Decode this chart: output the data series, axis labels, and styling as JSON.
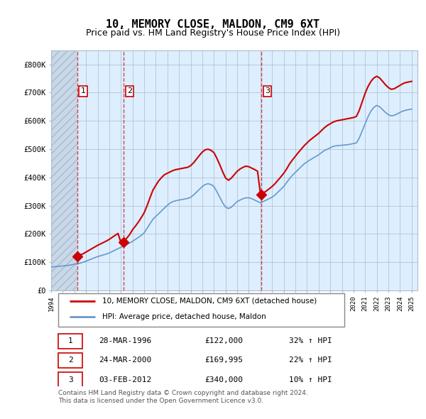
{
  "title": "10, MEMORY CLOSE, MALDON, CM9 6XT",
  "subtitle": "Price paid vs. HM Land Registry's House Price Index (HPI)",
  "ylabel": "",
  "ylim": [
    0,
    850000
  ],
  "yticks": [
    0,
    100000,
    200000,
    300000,
    400000,
    500000,
    600000,
    700000,
    800000
  ],
  "ytick_labels": [
    "£0",
    "£100K",
    "£200K",
    "£300K",
    "£400K",
    "£500K",
    "£600K",
    "£700K",
    "£800K"
  ],
  "xlim_start": 1994.0,
  "xlim_end": 2025.5,
  "background_color": "#ffffff",
  "plot_bg_color": "#ddeeff",
  "grid_color": "#aabbcc",
  "hatch_color": "#c8d8e8",
  "title_fontsize": 11,
  "subtitle_fontsize": 9,
  "sale_color": "#cc0000",
  "hpi_color": "#6699cc",
  "dashed_line_color": "#cc0000",
  "transactions": [
    {
      "date": 1996.23,
      "price": 122000,
      "label": "1"
    },
    {
      "date": 2000.23,
      "price": 169995,
      "label": "2"
    },
    {
      "date": 2012.09,
      "price": 340000,
      "label": "3"
    }
  ],
  "transaction_table": [
    {
      "num": "1",
      "date": "28-MAR-1996",
      "price": "£122,000",
      "hpi": "32% ↑ HPI"
    },
    {
      "num": "2",
      "date": "24-MAR-2000",
      "price": "£169,995",
      "hpi": "22% ↑ HPI"
    },
    {
      "num": "3",
      "date": "03-FEB-2012",
      "price": "£340,000",
      "hpi": "10% ↑ HPI"
    }
  ],
  "legend_line1": "10, MEMORY CLOSE, MALDON, CM9 6XT (detached house)",
  "legend_line2": "HPI: Average price, detached house, Maldon",
  "footer": "Contains HM Land Registry data © Crown copyright and database right 2024.\nThis data is licensed under the Open Government Licence v3.0.",
  "hpi_data_x": [
    1994.0,
    1994.25,
    1994.5,
    1994.75,
    1995.0,
    1995.25,
    1995.5,
    1995.75,
    1996.0,
    1996.25,
    1996.5,
    1996.75,
    1997.0,
    1997.25,
    1997.5,
    1997.75,
    1998.0,
    1998.25,
    1998.5,
    1998.75,
    1999.0,
    1999.25,
    1999.5,
    1999.75,
    2000.0,
    2000.25,
    2000.5,
    2000.75,
    2001.0,
    2001.25,
    2001.5,
    2001.75,
    2002.0,
    2002.25,
    2002.5,
    2002.75,
    2003.0,
    2003.25,
    2003.5,
    2003.75,
    2004.0,
    2004.25,
    2004.5,
    2004.75,
    2005.0,
    2005.25,
    2005.5,
    2005.75,
    2006.0,
    2006.25,
    2006.5,
    2006.75,
    2007.0,
    2007.25,
    2007.5,
    2007.75,
    2008.0,
    2008.25,
    2008.5,
    2008.75,
    2009.0,
    2009.25,
    2009.5,
    2009.75,
    2010.0,
    2010.25,
    2010.5,
    2010.75,
    2011.0,
    2011.25,
    2011.5,
    2011.75,
    2012.0,
    2012.25,
    2012.5,
    2012.75,
    2013.0,
    2013.25,
    2013.5,
    2013.75,
    2014.0,
    2014.25,
    2014.5,
    2014.75,
    2015.0,
    2015.25,
    2015.5,
    2015.75,
    2016.0,
    2016.25,
    2016.5,
    2016.75,
    2017.0,
    2017.25,
    2017.5,
    2017.75,
    2018.0,
    2018.25,
    2018.5,
    2018.75,
    2019.0,
    2019.25,
    2019.5,
    2019.75,
    2020.0,
    2020.25,
    2020.5,
    2020.75,
    2021.0,
    2021.25,
    2021.5,
    2021.75,
    2022.0,
    2022.25,
    2022.5,
    2022.75,
    2023.0,
    2023.25,
    2023.5,
    2023.75,
    2024.0,
    2024.25,
    2024.5,
    2024.75,
    2025.0
  ],
  "hpi_data_y": [
    83000,
    84000,
    85000,
    86000,
    87000,
    88000,
    89000,
    91000,
    93000,
    95000,
    97000,
    100000,
    104000,
    108000,
    112000,
    116000,
    120000,
    123000,
    126000,
    129000,
    133000,
    138000,
    143000,
    148000,
    153000,
    158000,
    163000,
    168000,
    174000,
    181000,
    188000,
    195000,
    204000,
    220000,
    236000,
    252000,
    262000,
    272000,
    282000,
    292000,
    302000,
    310000,
    315000,
    318000,
    320000,
    322000,
    324000,
    326000,
    330000,
    338000,
    348000,
    358000,
    368000,
    375000,
    378000,
    375000,
    368000,
    350000,
    330000,
    310000,
    295000,
    290000,
    295000,
    305000,
    315000,
    320000,
    325000,
    328000,
    328000,
    325000,
    320000,
    315000,
    310000,
    315000,
    320000,
    325000,
    330000,
    338000,
    348000,
    358000,
    368000,
    382000,
    396000,
    408000,
    418000,
    428000,
    438000,
    448000,
    455000,
    462000,
    468000,
    474000,
    480000,
    488000,
    495000,
    500000,
    505000,
    510000,
    512000,
    513000,
    514000,
    515000,
    516000,
    518000,
    520000,
    522000,
    540000,
    565000,
    590000,
    615000,
    635000,
    648000,
    655000,
    650000,
    640000,
    630000,
    622000,
    618000,
    620000,
    625000,
    630000,
    635000,
    638000,
    640000,
    642000
  ],
  "sale_line_x": [
    1994.0,
    1994.25,
    1994.5,
    1994.75,
    1995.0,
    1995.25,
    1995.5,
    1995.75,
    1996.0,
    1996.25,
    1996.5,
    1996.75,
    1997.0,
    1997.25,
    1997.5,
    1997.75,
    1998.0,
    1998.25,
    1998.5,
    1998.75,
    1999.0,
    1999.25,
    1999.5,
    1999.75,
    2000.0,
    2000.25,
    2000.5,
    2000.75,
    2001.0,
    2001.25,
    2001.5,
    2001.75,
    2002.0,
    2002.25,
    2002.5,
    2002.75,
    2003.0,
    2003.25,
    2003.5,
    2003.75,
    2004.0,
    2004.25,
    2004.5,
    2004.75,
    2005.0,
    2005.25,
    2005.5,
    2005.75,
    2006.0,
    2006.25,
    2006.5,
    2006.75,
    2007.0,
    2007.25,
    2007.5,
    2007.75,
    2008.0,
    2008.25,
    2008.5,
    2008.75,
    2009.0,
    2009.25,
    2009.5,
    2009.75,
    2010.0,
    2010.25,
    2010.5,
    2010.75,
    2011.0,
    2011.25,
    2011.5,
    2011.75,
    2012.0,
    2012.25,
    2012.5,
    2012.75,
    2013.0,
    2013.25,
    2013.5,
    2013.75,
    2014.0,
    2014.25,
    2014.5,
    2014.75,
    2015.0,
    2015.25,
    2015.5,
    2015.75,
    2016.0,
    2016.25,
    2016.5,
    2016.75,
    2017.0,
    2017.25,
    2017.5,
    2017.75,
    2018.0,
    2018.25,
    2018.5,
    2018.75,
    2019.0,
    2019.25,
    2019.5,
    2019.75,
    2020.0,
    2020.25,
    2020.5,
    2020.75,
    2021.0,
    2021.25,
    2021.5,
    2021.75,
    2022.0,
    2022.25,
    2022.5,
    2022.75,
    2023.0,
    2023.25,
    2023.5,
    2023.75,
    2024.0,
    2024.25,
    2024.5,
    2024.75,
    2025.0
  ],
  "sale_line_y": [
    null,
    null,
    null,
    null,
    null,
    null,
    null,
    null,
    null,
    122000,
    126000,
    130000,
    136000,
    142000,
    148000,
    154000,
    160000,
    165000,
    170000,
    175000,
    181000,
    188000,
    195000,
    202000,
    170000,
    175000,
    185000,
    198000,
    215000,
    228000,
    242000,
    258000,
    275000,
    300000,
    328000,
    355000,
    372000,
    388000,
    400000,
    410000,
    415000,
    420000,
    425000,
    428000,
    430000,
    432000,
    434000,
    436000,
    442000,
    452000,
    465000,
    478000,
    490000,
    498000,
    500000,
    496000,
    488000,
    468000,
    445000,
    420000,
    398000,
    390000,
    398000,
    410000,
    422000,
    430000,
    436000,
    440000,
    438000,
    433000,
    428000,
    422000,
    340000,
    345000,
    352000,
    360000,
    368000,
    378000,
    390000,
    402000,
    415000,
    430000,
    448000,
    462000,
    475000,
    488000,
    500000,
    512000,
    522000,
    532000,
    540000,
    548000,
    556000,
    566000,
    576000,
    584000,
    590000,
    596000,
    600000,
    602000,
    604000,
    606000,
    608000,
    610000,
    612000,
    616000,
    638000,
    668000,
    698000,
    722000,
    740000,
    752000,
    758000,
    752000,
    740000,
    728000,
    718000,
    712000,
    714000,
    720000,
    726000,
    732000,
    736000,
    738000,
    740000
  ]
}
